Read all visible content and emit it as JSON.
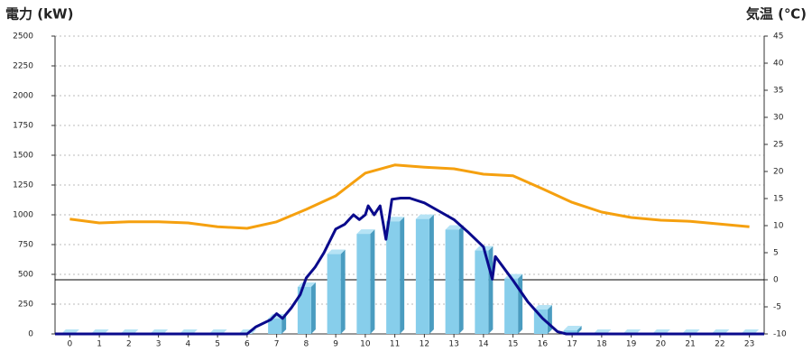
{
  "chart_data": {
    "type": "bar",
    "y_label": "電力 (kW)",
    "y2_label": "気温 (℃)",
    "y_label_color": "#1f6fb5",
    "y2_label_color": "#f08a1c",
    "categories": [
      "0",
      "1",
      "2",
      "3",
      "4",
      "5",
      "6",
      "7",
      "8",
      "9",
      "10",
      "11",
      "12",
      "13",
      "14",
      "15",
      "16",
      "17",
      "18",
      "19",
      "20",
      "21",
      "22",
      "23"
    ],
    "xlim": [
      -0.5,
      23.5
    ],
    "ylim": [
      0,
      2500
    ],
    "yticks": [
      0,
      250,
      500,
      750,
      1000,
      1250,
      1500,
      1750,
      2000,
      2250,
      2500
    ],
    "y2lim": [
      -10,
      45
    ],
    "y2ticks": [
      -10,
      -5,
      0,
      5,
      10,
      15,
      20,
      25,
      30,
      35,
      40,
      45
    ],
    "y2_reference_line": 0,
    "grid": true,
    "series": [
      {
        "type": "bar",
        "color": "#87ceeb",
        "values": [
          0,
          0,
          0,
          0,
          0,
          0,
          0,
          130,
          395,
          670,
          840,
          945,
          965,
          875,
          700,
          465,
          205,
          30,
          0,
          0,
          0,
          0,
          0,
          0
        ]
      },
      {
        "type": "line",
        "color": "#0a0a8c",
        "x": [
          -0.5,
          6.0,
          6.3,
          6.8,
          7.0,
          7.2,
          7.5,
          7.8,
          8.0,
          8.3,
          8.6,
          9.0,
          9.3,
          9.6,
          9.8,
          10.0,
          10.1,
          10.3,
          10.5,
          10.7,
          10.9,
          11.2,
          11.5,
          12.0,
          12.5,
          13.0,
          13.5,
          14.0,
          14.3,
          14.4,
          15.0,
          15.5,
          16.0,
          16.5,
          16.8,
          23.5
        ],
        "values": [
          0,
          0,
          60,
          120,
          170,
          130,
          220,
          330,
          470,
          560,
          680,
          880,
          920,
          1000,
          960,
          1000,
          1075,
          1000,
          1075,
          795,
          1130,
          1140,
          1140,
          1100,
          1030,
          960,
          850,
          730,
          460,
          650,
          450,
          270,
          130,
          20,
          0,
          0
        ]
      },
      {
        "type": "line",
        "axis": "y2",
        "color": "#f5a00f",
        "values": [
          11.2,
          10.5,
          10.7,
          10.7,
          10.5,
          9.8,
          9.5,
          10.7,
          13,
          15.5,
          19.7,
          21.2,
          20.8,
          20.5,
          19.5,
          19.2,
          16.8,
          14.3,
          12.5,
          11.5,
          11,
          10.8,
          10.3,
          9.8
        ]
      }
    ]
  }
}
